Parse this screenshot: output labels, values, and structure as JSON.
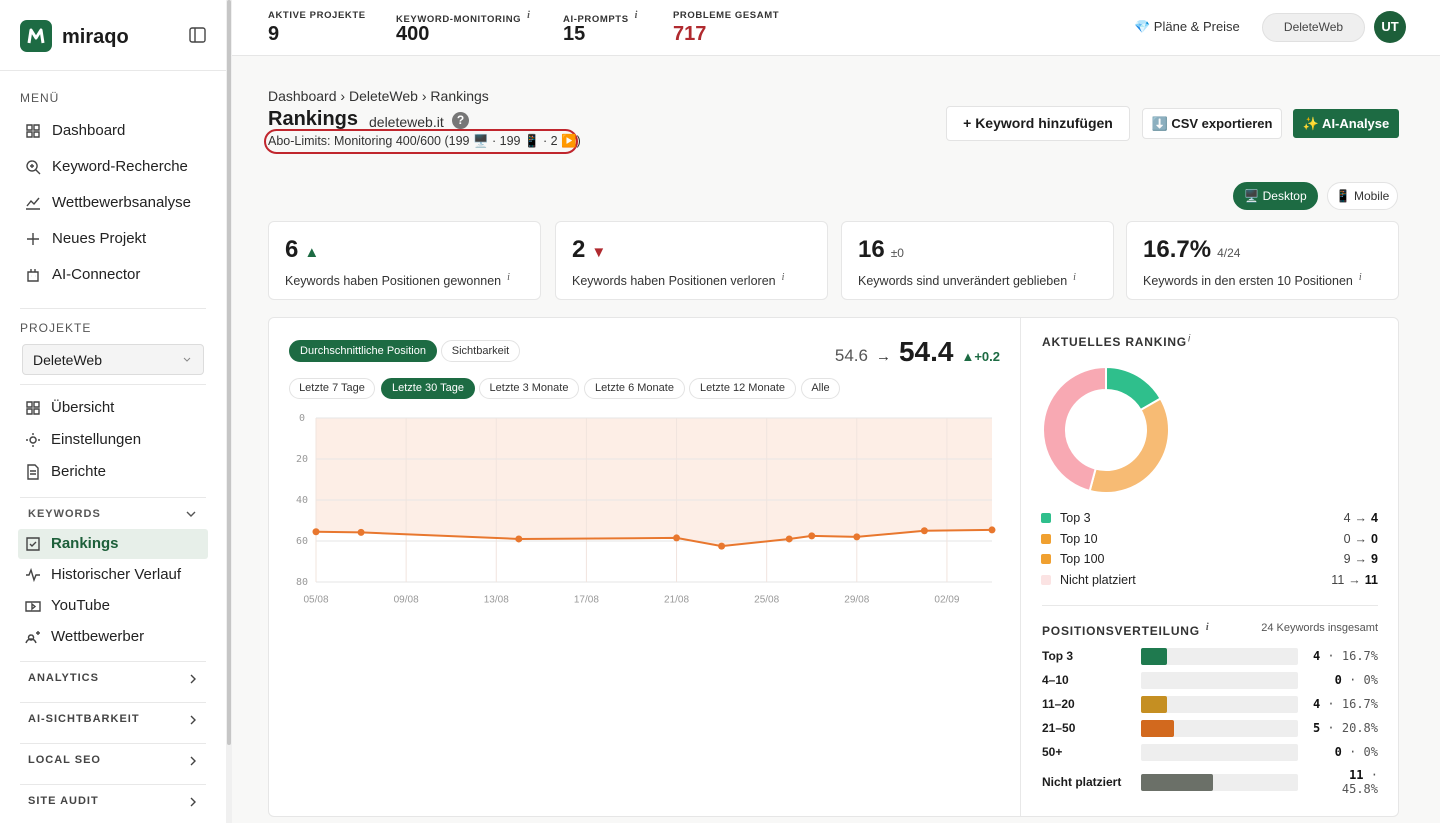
{
  "sidebar": {
    "brand": "miraqo",
    "menu_title": "MENÜ",
    "menu": [
      "Dashboard",
      "Keyword-Recherche",
      "Wettbewerbsanalyse",
      "Neues Projekt",
      "AI-Connector"
    ],
    "projects_title": "PROJEKTE",
    "project_select": "DeleteWeb",
    "project_nav": [
      "Übersicht",
      "Einstellungen",
      "Berichte"
    ],
    "keywords_title": "KEYWORDS",
    "keywords_nav": [
      "Rankings",
      "Historischer Verlauf",
      "YouTube",
      "Wettbewerber"
    ],
    "sections": [
      "ANALYTICS",
      "AI-SICHTBARKEIT",
      "LOCAL SEO",
      "SITE AUDIT"
    ]
  },
  "topbar": {
    "stats": [
      {
        "label": "AKTIVE PROJEKTE",
        "value": 9
      },
      {
        "label": "KEYWORD-MONITORING",
        "value": 400
      },
      {
        "label": "AI-PROMPTS",
        "value": 15
      },
      {
        "label": "PROBLEME GESAMT",
        "value": 717
      }
    ],
    "plans": "💎 Pläne & Preise",
    "project": "DeleteWeb",
    "avatar": "UT"
  },
  "info": "i",
  "breadcrumb": {
    "items": [
      "Dashboard",
      "DeleteWeb",
      "Rankings"
    ],
    "separator": "›"
  },
  "header": {
    "title": "Rankings",
    "domain": "deleteweb.it",
    "help": "?",
    "limits": "Abo-Limits: Monitoring 400/600 (199 🖥️ · 199 📱 · 2 ▶️)"
  },
  "actions": [
    "+ Keyword hinzufügen",
    "⬇️ CSV exportieren",
    "✨ AI-Analyse"
  ],
  "devices": [
    "🖥️ Desktop",
    "📱 Mobile"
  ],
  "kpis": [
    {
      "value": 6,
      "note": "▲",
      "label": "Keywords haben Positionen gewonnen"
    },
    {
      "value": 2,
      "note": "▼",
      "label": "Keywords haben Positionen verloren"
    },
    {
      "value": 16,
      "note": "±0",
      "label": "Keywords sind unverändert geblieben"
    },
    {
      "value": "16.7%",
      "note": "4/24",
      "label": "Keywords in den ersten 10 Positionen"
    }
  ],
  "chart_data": [
    {
      "type": "line",
      "tabs": [
        "Durchschnittliche Position",
        "Sichtbarkeit"
      ],
      "ranges": [
        "Letzte 7 Tage",
        "Letzte 30 Tage",
        "Letzte 3 Monate",
        "Letzte 6 Monate",
        "Letzte 12 Monate",
        "Alle"
      ],
      "summary": {
        "from": 54.6,
        "arrow": "→",
        "to": 54.4,
        "change": "▲+0.2"
      },
      "x": [
        "05/08",
        "07/08",
        "14/08",
        "21/08",
        "23/08",
        "26/08",
        "27/08",
        "29/08",
        "01/09",
        "04/09"
      ],
      "values": [
        55.5,
        55.8,
        59,
        58.5,
        62.5,
        59,
        57.5,
        58,
        55,
        54.6
      ],
      "color": "#e8772e",
      "fill": "#fdeee6",
      "xlim": [
        "05/08",
        "04/09"
      ],
      "xticks": [
        "05/08",
        "09/08",
        "13/08",
        "17/08",
        "21/08",
        "25/08",
        "29/08",
        "02/09"
      ],
      "ylim": [
        0,
        80
      ],
      "yticks": [
        0,
        20,
        40,
        60,
        80
      ],
      "y_inverted": true,
      "grid": true
    },
    {
      "type": "donut",
      "title": "AKTUELLES RANKING",
      "categories": [
        "Top 3",
        "Top 10",
        "Top 100",
        "Nicht platziert"
      ],
      "previous": [
        4,
        0,
        9,
        11
      ],
      "values": [
        4,
        0,
        9,
        11
      ],
      "colors": [
        "#2fbf8c",
        "#f0a030",
        "#f7bb74",
        "#f8a9b3"
      ],
      "legend_colors": [
        "#2fbf8c",
        "#f0a030",
        "#f0a030",
        "#fbe3e3"
      ],
      "arrow": "→"
    }
  ],
  "distribution": {
    "title": "POSITIONSVERTEILUNG",
    "total_label": "24 Keywords insgesamt",
    "separator": "·",
    "rows": [
      {
        "label": "Top 3",
        "count": 4,
        "pct": "16.7%",
        "color": "#1f7a4f"
      },
      {
        "label": "4–10",
        "count": 0,
        "pct": "0%",
        "color": "#1f7a4f"
      },
      {
        "label": "11–20",
        "count": 4,
        "pct": "16.7%",
        "color": "#c58f22"
      },
      {
        "label": "21–50",
        "count": 5,
        "pct": "20.8%",
        "color": "#d2691e"
      },
      {
        "label": "50+",
        "count": 0,
        "pct": "0%",
        "color": "#999999"
      },
      {
        "label": "Nicht platziert",
        "count": 11,
        "pct": "45.8%",
        "color": "#6b7068"
      }
    ]
  }
}
